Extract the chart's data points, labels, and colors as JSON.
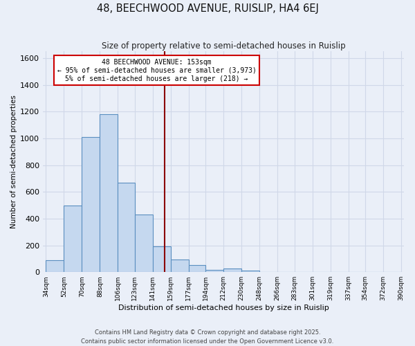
{
  "title": "48, BEECHWOOD AVENUE, RUISLIP, HA4 6EJ",
  "subtitle": "Size of property relative to semi-detached houses in Ruislip",
  "xlabel": "Distribution of semi-detached houses by size in Ruislip",
  "ylabel": "Number of semi-detached properties",
  "bin_labels": [
    "34sqm",
    "52sqm",
    "70sqm",
    "88sqm",
    "106sqm",
    "123sqm",
    "141sqm",
    "159sqm",
    "177sqm",
    "194sqm",
    "212sqm",
    "230sqm",
    "248sqm",
    "266sqm",
    "283sqm",
    "301sqm",
    "319sqm",
    "337sqm",
    "354sqm",
    "372sqm",
    "390sqm"
  ],
  "bin_edges": [
    34,
    52,
    70,
    88,
    106,
    123,
    141,
    159,
    177,
    194,
    212,
    230,
    248,
    266,
    283,
    301,
    319,
    337,
    354,
    372,
    390
  ],
  "bar_values": [
    90,
    500,
    1010,
    1180,
    670,
    430,
    190,
    95,
    55,
    15,
    25,
    10,
    0,
    0,
    0,
    0,
    0,
    0,
    0,
    0
  ],
  "bar_color": "#c5d8ef",
  "bar_edge_color": "#5a8fc0",
  "property_size": 153,
  "vline_color": "#8b0000",
  "annotation_text": "48 BEECHWOOD AVENUE: 153sqm\n← 95% of semi-detached houses are smaller (3,973)\n5% of semi-detached houses are larger (218) →",
  "annotation_box_color": "#ffffff",
  "annotation_box_edge": "#cc0000",
  "ylim": [
    0,
    1650
  ],
  "yticks": [
    0,
    200,
    400,
    600,
    800,
    1000,
    1200,
    1400,
    1600
  ],
  "footer_line1": "Contains HM Land Registry data © Crown copyright and database right 2025.",
  "footer_line2": "Contains public sector information licensed under the Open Government Licence v3.0.",
  "bg_color": "#eaeff8",
  "plot_bg_color": "#eaeff8",
  "grid_color": "#d0d8e8"
}
